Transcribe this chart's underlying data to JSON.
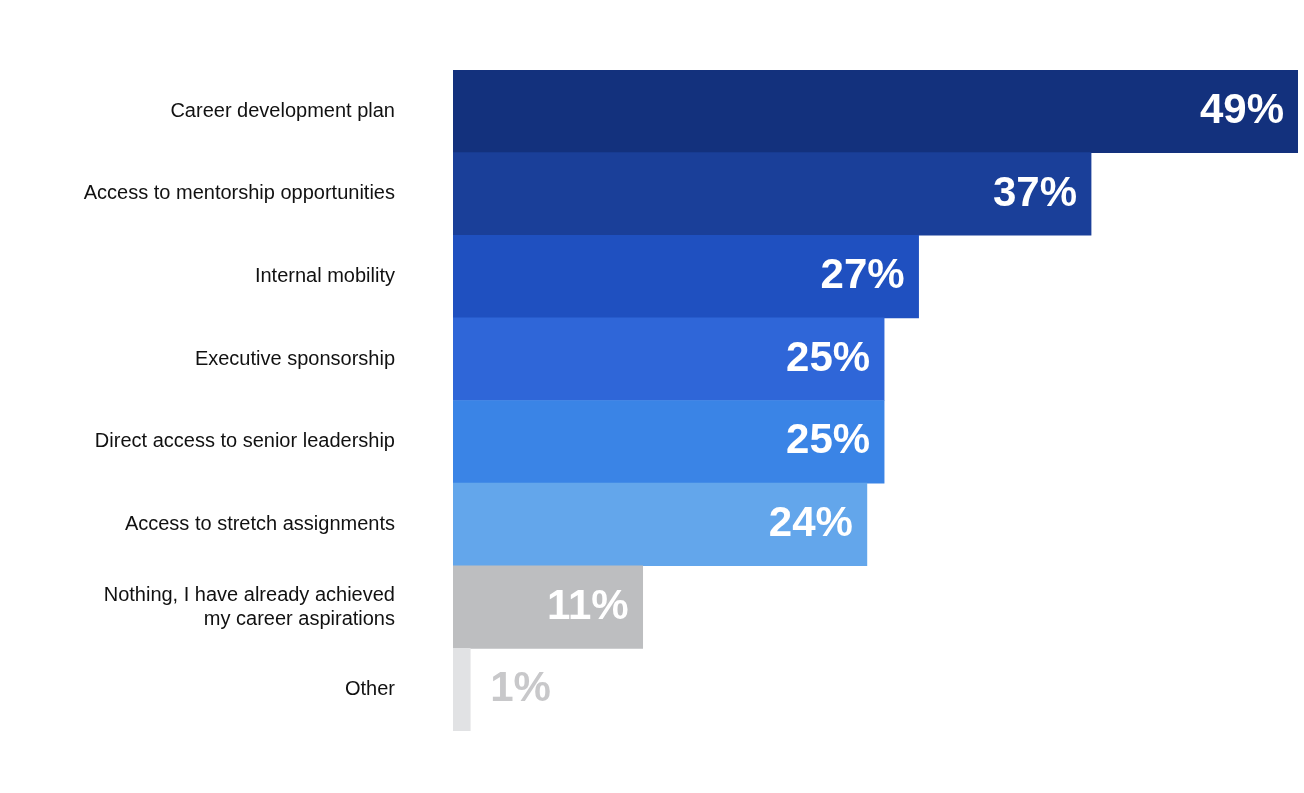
{
  "chart_data": {
    "type": "bar",
    "orientation": "horizontal",
    "categories": [
      "Career development plan",
      "Access to mentorship opportunities",
      "Internal mobility",
      "Executive sponsorship",
      "Direct access to senior leadership",
      "Access to stretch assignments",
      "Nothing, I have already achieved\nmy career aspirations",
      "Other"
    ],
    "values": [
      49,
      37,
      27,
      25,
      25,
      24,
      11,
      1
    ],
    "value_labels": [
      "49%",
      "37%",
      "27%",
      "25%",
      "25%",
      "24%",
      "11%",
      "1%"
    ],
    "colors": [
      "#13317d",
      "#1a3f99",
      "#1f50c0",
      "#2f66d8",
      "#3a84e6",
      "#63a6eb",
      "#bdbec0",
      "#e1e2e4"
    ],
    "legend": false
  }
}
